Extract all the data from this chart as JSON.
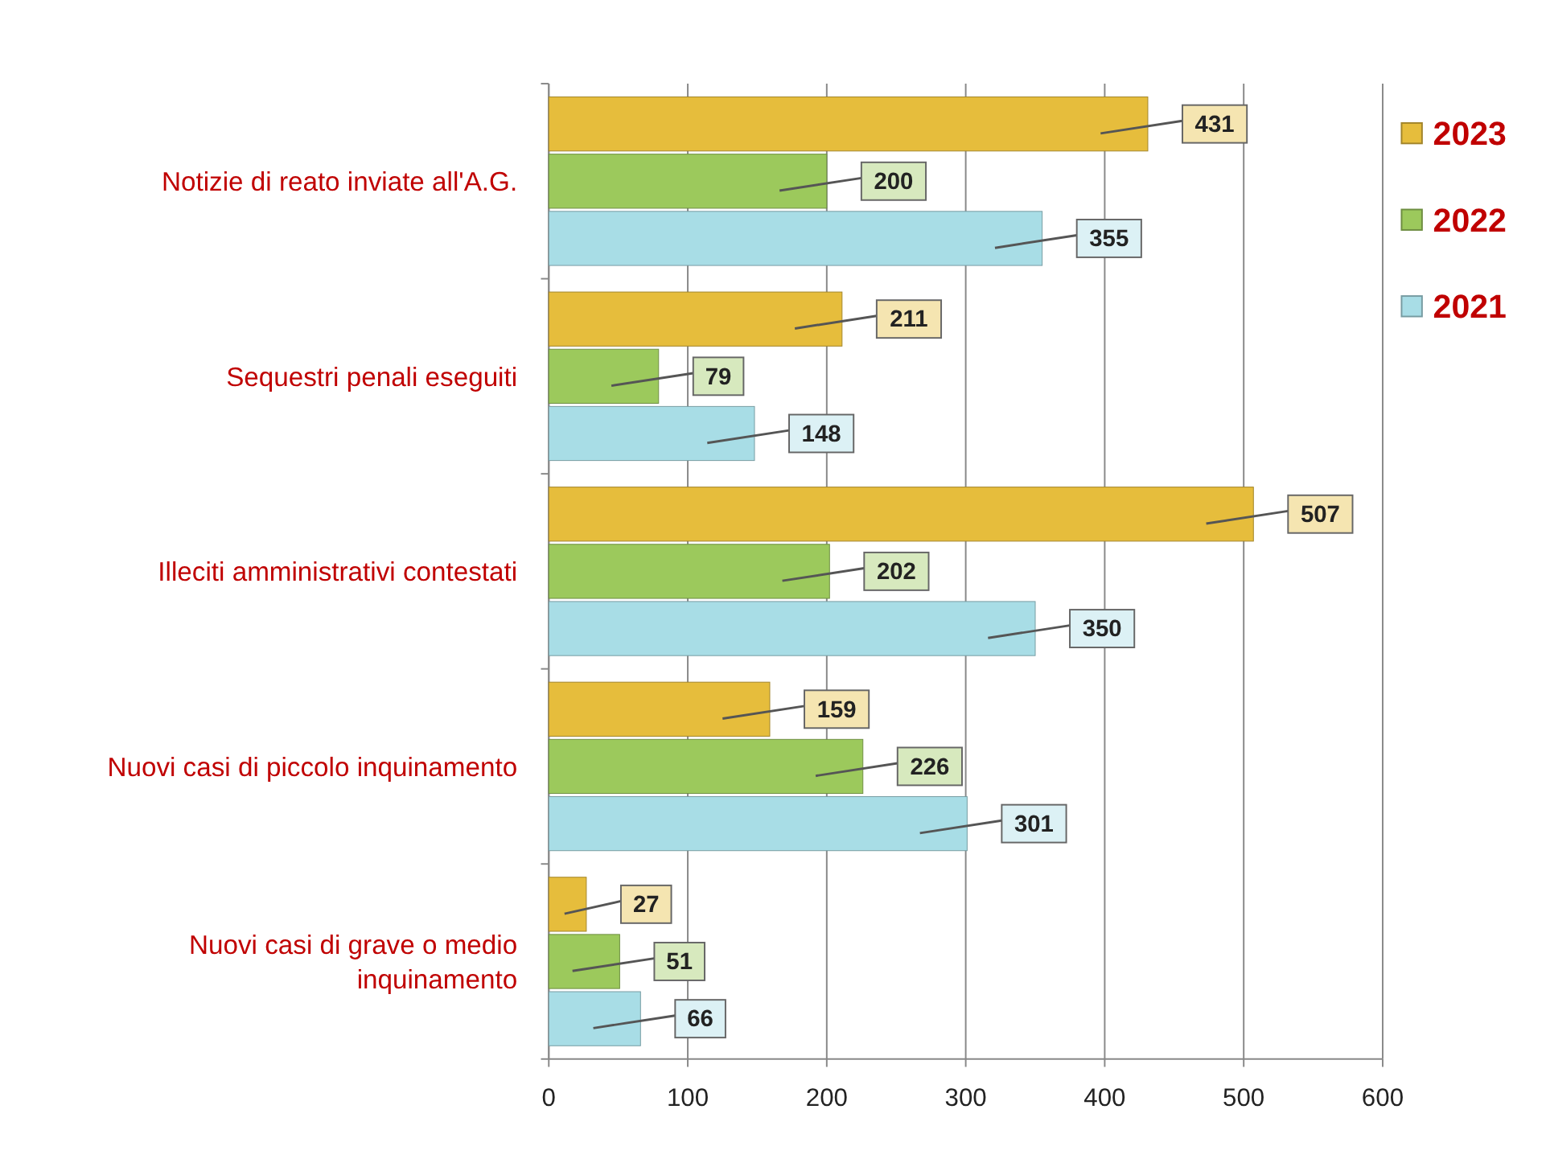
{
  "chart_data": {
    "type": "bar",
    "orientation": "horizontal",
    "categories": [
      "Notizie di reato inviate all'A.G.",
      "Sequestri penali eseguiti",
      "Illeciti amministrativi contestati",
      "Nuovi casi di piccolo inquinamento",
      "Nuovi casi di grave o medio inquinamento"
    ],
    "series": [
      {
        "name": "2023",
        "color": "#e6bd3c",
        "values": [
          431,
          211,
          507,
          159,
          27
        ]
      },
      {
        "name": "2022",
        "color": "#9cc95c",
        "values": [
          200,
          79,
          202,
          226,
          51
        ]
      },
      {
        "name": "2021",
        "color": "#a8dde6",
        "values": [
          355,
          148,
          350,
          301,
          66
        ]
      }
    ],
    "xlim": [
      0,
      600
    ],
    "xticks": [
      0,
      100,
      200,
      300,
      400,
      500,
      600
    ],
    "grid": "x",
    "legend": "top right",
    "data_labels": true
  }
}
